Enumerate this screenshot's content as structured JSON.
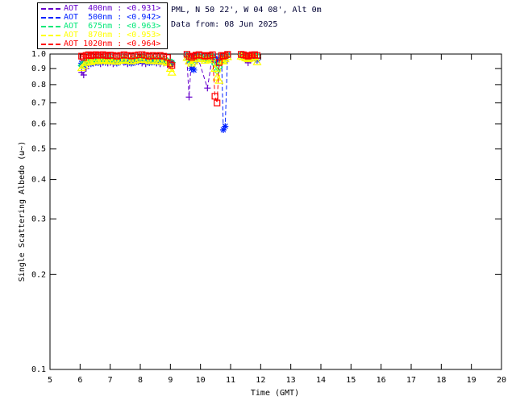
{
  "header": {
    "line1": "PML, N 50 22', W 04 08', Alt 0m",
    "line2": "Data from: 08 Jun 2025",
    "text_color": "#000033"
  },
  "legend": {
    "items": [
      {
        "label": "AOT  400nm : <0.931>",
        "color": "#6600CC"
      },
      {
        "label": "AOT  500nm : <0.942>",
        "color": "#0022FF"
      },
      {
        "label": "AOT  675nm : <0.963>",
        "color": "#00E878"
      },
      {
        "label": "AOT  870nm : <0.953>",
        "color": "#FFFF00"
      },
      {
        "label": "AOT 1020nm : <0.964>",
        "color": "#FF0000"
      }
    ]
  },
  "chart_data": {
    "type": "line",
    "title": "",
    "xlabel": "Time (GMT)",
    "ylabel": "Single Scattering Albedo (ω~)",
    "x_scale": "linear",
    "y_scale": "log",
    "xlim": [
      5,
      20
    ],
    "ylim": [
      0.1,
      1.0
    ],
    "x_ticks": [
      5,
      6,
      7,
      8,
      9,
      10,
      11,
      12,
      13,
      14,
      15,
      16,
      17,
      18,
      19,
      20
    ],
    "y_ticks": [
      "1.0",
      "0.9",
      "0.8",
      "0.7",
      "0.6",
      "0.5",
      "0.4",
      "0.3",
      "0.2",
      "0.1"
    ],
    "grid": false,
    "legend_position": "top-left-outside",
    "axis_color": "#000000",
    "line_style": "dashed",
    "series": [
      {
        "name": "AOT 400nm",
        "mean": 0.931,
        "color": "#6600CC",
        "marker": "plus",
        "points": [
          [
            6.05,
            0.875
          ],
          [
            6.12,
            0.858
          ],
          [
            6.2,
            0.9
          ],
          [
            6.28,
            0.93
          ],
          [
            6.36,
            0.945
          ],
          [
            6.44,
            0.935
          ],
          [
            6.52,
            0.94
          ],
          [
            6.6,
            0.945
          ],
          [
            6.68,
            0.93
          ],
          [
            6.76,
            0.94
          ],
          [
            6.84,
            0.945
          ],
          [
            6.92,
            0.935
          ],
          [
            7.0,
            0.94
          ],
          [
            7.1,
            0.93
          ],
          [
            7.22,
            0.935
          ],
          [
            7.34,
            0.945
          ],
          [
            7.46,
            0.94
          ],
          [
            7.58,
            0.93
          ],
          [
            7.7,
            0.935
          ],
          [
            7.82,
            0.94
          ],
          [
            7.94,
            0.945
          ],
          [
            8.06,
            0.935
          ],
          [
            8.18,
            0.93
          ],
          [
            8.3,
            0.94
          ],
          [
            8.42,
            0.945
          ],
          [
            8.54,
            0.935
          ],
          [
            8.66,
            0.93
          ],
          [
            8.78,
            0.935
          ],
          [
            8.9,
            0.925
          ],
          [
            9.0,
            0.92
          ],
          [
            9.05,
            0.93
          ],
          null,
          [
            9.55,
            0.955
          ],
          [
            9.62,
            0.73
          ],
          [
            9.7,
            0.975
          ],
          [
            9.78,
            0.99
          ],
          [
            9.9,
            0.985
          ],
          [
            10.23,
            0.78
          ],
          [
            10.4,
            0.99
          ],
          [
            10.5,
            0.975
          ],
          [
            10.6,
            0.96
          ],
          [
            10.7,
            0.955
          ],
          [
            10.8,
            0.965
          ],
          [
            10.9,
            0.975
          ],
          null,
          [
            11.35,
            0.985
          ],
          [
            11.42,
            0.975
          ],
          [
            11.5,
            0.96
          ],
          [
            11.58,
            0.938
          ],
          [
            11.65,
            0.955
          ],
          [
            11.72,
            0.97
          ],
          [
            11.8,
            0.975
          ],
          [
            11.88,
            0.97
          ]
        ]
      },
      {
        "name": "AOT 500nm",
        "mean": 0.942,
        "color": "#0022FF",
        "marker": "asterisk",
        "points": [
          [
            6.05,
            0.935
          ],
          [
            6.12,
            0.92
          ],
          [
            6.2,
            0.935
          ],
          [
            6.28,
            0.945
          ],
          [
            6.36,
            0.93
          ],
          [
            6.44,
            0.94
          ],
          [
            6.52,
            0.948
          ],
          [
            6.6,
            0.938
          ],
          [
            6.68,
            0.945
          ],
          [
            6.76,
            0.95
          ],
          [
            6.84,
            0.94
          ],
          [
            6.92,
            0.945
          ],
          [
            7.0,
            0.95
          ],
          [
            7.1,
            0.942
          ],
          [
            7.22,
            0.935
          ],
          [
            7.34,
            0.945
          ],
          [
            7.46,
            0.95
          ],
          [
            7.58,
            0.94
          ],
          [
            7.7,
            0.935
          ],
          [
            7.82,
            0.942
          ],
          [
            7.94,
            0.948
          ],
          [
            8.06,
            0.952
          ],
          [
            8.18,
            0.945
          ],
          [
            8.3,
            0.938
          ],
          [
            8.42,
            0.945
          ],
          [
            8.54,
            0.94
          ],
          [
            8.66,
            0.948
          ],
          [
            8.78,
            0.94
          ],
          [
            8.9,
            0.935
          ],
          [
            9.0,
            0.93
          ],
          [
            9.05,
            0.94
          ],
          null,
          [
            9.55,
            0.995
          ],
          [
            9.62,
            0.955
          ],
          [
            9.7,
            0.9
          ],
          [
            9.78,
            0.89
          ],
          [
            9.85,
            0.955
          ],
          [
            9.95,
            0.985
          ],
          [
            10.05,
            0.97
          ],
          [
            10.15,
            0.96
          ],
          [
            10.23,
            0.975
          ],
          [
            10.32,
            0.96
          ],
          [
            10.4,
            0.985
          ],
          [
            10.48,
            0.97
          ],
          [
            10.55,
            0.95
          ],
          [
            10.62,
            0.93
          ],
          [
            10.7,
            0.975
          ],
          [
            10.76,
            0.575
          ],
          [
            10.82,
            0.59
          ],
          [
            10.9,
            0.995
          ],
          null,
          [
            11.35,
            0.99
          ],
          [
            11.42,
            0.985
          ],
          [
            11.5,
            0.975
          ],
          [
            11.58,
            0.965
          ],
          [
            11.65,
            0.975
          ],
          [
            11.72,
            0.985
          ],
          [
            11.8,
            0.975
          ],
          [
            11.88,
            0.955
          ]
        ]
      },
      {
        "name": "AOT 675nm",
        "mean": 0.963,
        "color": "#00E878",
        "marker": "diamond",
        "points": [
          [
            6.05,
            0.92
          ],
          [
            6.12,
            0.935
          ],
          [
            6.2,
            0.95
          ],
          [
            6.28,
            0.958
          ],
          [
            6.36,
            0.952
          ],
          [
            6.44,
            0.96
          ],
          [
            6.52,
            0.965
          ],
          [
            6.6,
            0.958
          ],
          [
            6.68,
            0.963
          ],
          [
            6.76,
            0.968
          ],
          [
            6.84,
            0.962
          ],
          [
            6.92,
            0.958
          ],
          [
            7.0,
            0.965
          ],
          [
            7.1,
            0.96
          ],
          [
            7.22,
            0.955
          ],
          [
            7.34,
            0.962
          ],
          [
            7.46,
            0.968
          ],
          [
            7.58,
            0.962
          ],
          [
            7.7,
            0.958
          ],
          [
            7.82,
            0.963
          ],
          [
            7.94,
            0.968
          ],
          [
            8.06,
            0.972
          ],
          [
            8.18,
            0.966
          ],
          [
            8.3,
            0.96
          ],
          [
            8.42,
            0.965
          ],
          [
            8.54,
            0.958
          ],
          [
            8.66,
            0.963
          ],
          [
            8.78,
            0.956
          ],
          [
            8.9,
            0.95
          ],
          [
            9.0,
            0.945
          ],
          [
            9.05,
            0.94
          ],
          null,
          [
            9.55,
            0.99
          ],
          [
            9.62,
            0.96
          ],
          [
            9.7,
            0.945
          ],
          [
            9.78,
            0.96
          ],
          [
            9.85,
            0.975
          ],
          [
            9.95,
            0.985
          ],
          [
            10.05,
            0.975
          ],
          [
            10.15,
            0.965
          ],
          [
            10.23,
            0.975
          ],
          [
            10.32,
            0.968
          ],
          [
            10.4,
            0.985
          ],
          [
            10.48,
            0.93
          ],
          [
            10.55,
            0.885
          ],
          [
            10.62,
            0.91
          ],
          [
            10.7,
            0.97
          ],
          [
            10.76,
            0.96
          ],
          [
            10.82,
            0.975
          ],
          [
            10.9,
            0.99
          ],
          null,
          [
            11.35,
            0.995
          ],
          [
            11.42,
            0.99
          ],
          [
            11.5,
            0.982
          ],
          [
            11.58,
            0.975
          ],
          [
            11.65,
            0.98
          ],
          [
            11.72,
            0.988
          ],
          [
            11.8,
            0.992
          ],
          [
            11.88,
            0.985
          ]
        ]
      },
      {
        "name": "AOT 870nm",
        "mean": 0.953,
        "color": "#FFFF00",
        "marker": "triangle",
        "points": [
          [
            6.05,
            0.905
          ],
          [
            6.12,
            0.92
          ],
          [
            6.2,
            0.94
          ],
          [
            6.28,
            0.95
          ],
          [
            6.36,
            0.944
          ],
          [
            6.44,
            0.952
          ],
          [
            6.52,
            0.958
          ],
          [
            6.6,
            0.95
          ],
          [
            6.68,
            0.955
          ],
          [
            6.76,
            0.96
          ],
          [
            6.84,
            0.954
          ],
          [
            6.92,
            0.95
          ],
          [
            7.0,
            0.958
          ],
          [
            7.1,
            0.952
          ],
          [
            7.22,
            0.947
          ],
          [
            7.34,
            0.954
          ],
          [
            7.46,
            0.96
          ],
          [
            7.58,
            0.954
          ],
          [
            7.7,
            0.95
          ],
          [
            7.82,
            0.955
          ],
          [
            7.94,
            0.96
          ],
          [
            8.06,
            0.964
          ],
          [
            8.18,
            0.958
          ],
          [
            8.3,
            0.952
          ],
          [
            8.42,
            0.957
          ],
          [
            8.54,
            0.95
          ],
          [
            8.66,
            0.955
          ],
          [
            8.78,
            0.948
          ],
          [
            8.9,
            0.94
          ],
          [
            9.0,
            0.9
          ],
          [
            9.05,
            0.875
          ],
          null,
          [
            9.55,
            0.975
          ],
          [
            9.62,
            0.95
          ],
          [
            9.7,
            0.935
          ],
          [
            9.78,
            0.95
          ],
          [
            9.85,
            0.965
          ],
          [
            9.95,
            0.975
          ],
          [
            10.05,
            0.965
          ],
          [
            10.15,
            0.955
          ],
          [
            10.23,
            0.965
          ],
          [
            10.32,
            0.958
          ],
          [
            10.4,
            0.975
          ],
          [
            10.48,
            0.9
          ],
          [
            10.55,
            0.845
          ],
          [
            10.62,
            0.825
          ],
          [
            10.7,
            0.955
          ],
          [
            10.76,
            0.95
          ],
          [
            10.82,
            0.965
          ],
          [
            10.9,
            0.98
          ],
          null,
          [
            11.35,
            0.985
          ],
          [
            11.42,
            0.98
          ],
          [
            11.5,
            0.972
          ],
          [
            11.58,
            0.965
          ],
          [
            11.65,
            0.97
          ],
          [
            11.72,
            0.978
          ],
          [
            11.8,
            0.982
          ],
          [
            11.88,
            0.945
          ]
        ]
      },
      {
        "name": "AOT 1020nm",
        "mean": 0.964,
        "color": "#FF0000",
        "marker": "square",
        "points": [
          [
            6.05,
            0.985
          ],
          [
            6.12,
            0.975
          ],
          [
            6.2,
            0.99
          ],
          [
            6.28,
            0.995
          ],
          [
            6.36,
            0.988
          ],
          [
            6.44,
            0.992
          ],
          [
            6.52,
            0.996
          ],
          [
            6.6,
            0.99
          ],
          [
            6.68,
            0.993
          ],
          [
            6.76,
            0.996
          ],
          [
            6.84,
            0.99
          ],
          [
            6.92,
            0.987
          ],
          [
            7.0,
            0.993
          ],
          [
            7.1,
            0.99
          ],
          [
            7.22,
            0.985
          ],
          [
            7.34,
            0.99
          ],
          [
            7.46,
            0.995
          ],
          [
            7.58,
            0.99
          ],
          [
            7.7,
            0.986
          ],
          [
            7.82,
            0.99
          ],
          [
            7.94,
            0.994
          ],
          [
            8.06,
            0.996
          ],
          [
            8.18,
            0.99
          ],
          [
            8.3,
            0.985
          ],
          [
            8.42,
            0.99
          ],
          [
            8.54,
            0.986
          ],
          [
            8.66,
            0.99
          ],
          [
            8.78,
            0.984
          ],
          [
            8.9,
            0.975
          ],
          [
            9.0,
            0.93
          ],
          [
            9.05,
            0.92
          ],
          null,
          [
            9.55,
            0.998
          ],
          [
            9.62,
            0.985
          ],
          [
            9.7,
            0.975
          ],
          [
            9.78,
            0.985
          ],
          [
            9.85,
            0.992
          ],
          [
            9.95,
            0.996
          ],
          [
            10.05,
            0.99
          ],
          [
            10.15,
            0.985
          ],
          [
            10.23,
            0.99
          ],
          [
            10.32,
            0.986
          ],
          [
            10.4,
            0.995
          ],
          [
            10.48,
            0.735
          ],
          [
            10.55,
            0.7
          ],
          [
            10.62,
            0.94
          ],
          [
            10.7,
            0.99
          ],
          [
            10.76,
            0.985
          ],
          [
            10.82,
            0.99
          ],
          [
            10.9,
            0.998
          ],
          null,
          [
            11.35,
            0.998
          ],
          [
            11.42,
            0.995
          ],
          [
            11.5,
            0.99
          ],
          [
            11.58,
            0.985
          ],
          [
            11.65,
            0.99
          ],
          [
            11.72,
            0.994
          ],
          [
            11.8,
            0.996
          ],
          [
            11.88,
            0.99
          ]
        ]
      }
    ]
  }
}
